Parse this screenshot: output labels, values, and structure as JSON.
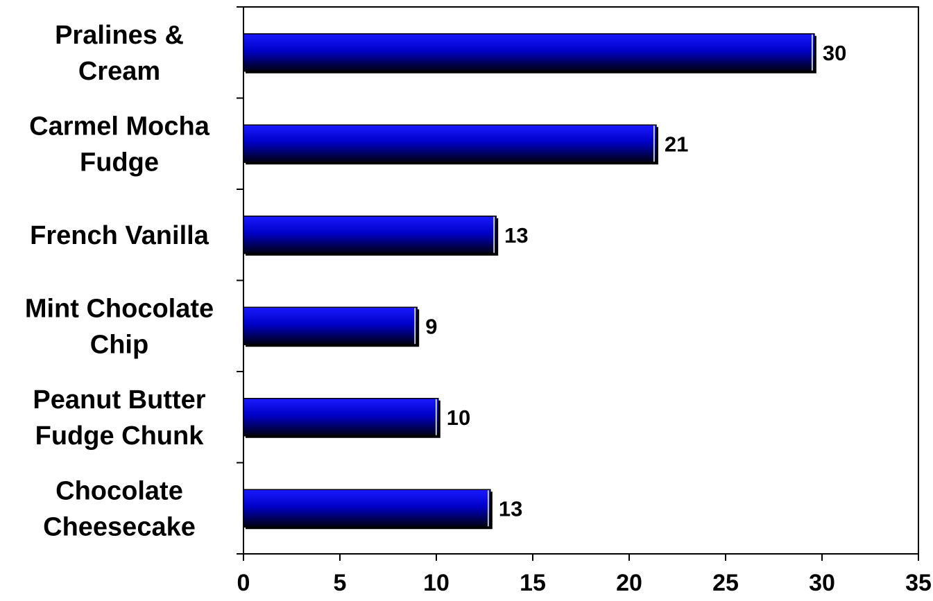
{
  "chart_data": {
    "type": "bar",
    "orientation": "horizontal",
    "categories": [
      [
        "Pralines &",
        "Cream"
      ],
      [
        "Carmel Mocha",
        "Fudge"
      ],
      [
        "French Vanilla"
      ],
      [
        "Mint Chocolate",
        "Chip"
      ],
      [
        "Peanut Butter",
        "Fudge Chunk"
      ],
      [
        "Chocolate",
        "Cheesecake"
      ]
    ],
    "values": [
      29.6,
      21.4,
      13.1,
      9.0,
      10.1,
      12.8
    ],
    "data_labels": [
      "30",
      "21",
      "13",
      "9",
      "10",
      "13"
    ],
    "xlim": [
      0,
      35
    ],
    "xticks": [
      0,
      5,
      10,
      15,
      20,
      25,
      30,
      35
    ],
    "title": "",
    "xlabel": "",
    "ylabel": "",
    "grid": false,
    "legend": "none",
    "colors": {
      "bar_top": "#1a1aff",
      "bar_mid": "#0000c8",
      "bar_bottom": "#000010",
      "axis": "#000000",
      "text": "#000000"
    }
  }
}
